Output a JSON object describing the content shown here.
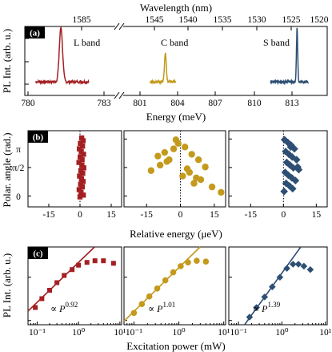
{
  "chart_data": [
    {
      "panel": "(a)",
      "type": "line",
      "xlabel": "Energy (meV)",
      "ylabel": "PL Int. (arb. u.)",
      "top_axis_label": "Wavelength (nm)",
      "top_ticks": [
        "1585",
        "1545",
        "1540",
        "1535",
        "1530",
        "1525",
        "1520"
      ],
      "bottom_ticks": [
        "780",
        "783",
        "801",
        "804",
        "807",
        "810",
        "813"
      ],
      "axis_break": true,
      "series": [
        {
          "name": "L band",
          "color": "#a31f22",
          "peak_energy": 781.3,
          "x_range": [
            780.3,
            782.4
          ]
        },
        {
          "name": "C band",
          "color": "#c39a1c",
          "peak_energy": 803.0,
          "x_range": [
            801.8,
            803.8
          ]
        },
        {
          "name": "S band",
          "color": "#2e4f74",
          "peak_energy": 813.4,
          "x_range": [
            811.3,
            814.3
          ]
        }
      ]
    },
    {
      "panel": "(b)",
      "type": "scatter",
      "xlabel": "Relative energy (μeV)",
      "ylabel": "Polar. angle (rad.)",
      "xticks": [
        "-15",
        "0",
        "15"
      ],
      "yticks": [
        "0",
        "π/2",
        "π"
      ],
      "xlim": [
        -25,
        20
      ],
      "ylim": [
        -0.6,
        3.6
      ],
      "series": [
        {
          "name": "L band",
          "color": "#a31f22",
          "marker": "square",
          "x": [
            0.8,
            1.5,
            0.2,
            1.2,
            -0.3,
            0.6,
            1.7,
            0.1,
            1.0,
            -0.5,
            0.9,
            1.8,
            0.4,
            1.3,
            -0.2,
            0.7,
            1.5,
            0.3,
            1.1,
            -0.4,
            0.5,
            1.6,
            0.0
          ],
          "y": [
            3.2,
            3.05,
            2.9,
            2.75,
            2.6,
            2.45,
            2.3,
            2.15,
            2.0,
            1.85,
            1.7,
            1.55,
            1.4,
            1.25,
            1.1,
            0.95,
            0.8,
            0.65,
            0.5,
            0.35,
            0.2,
            0.05,
            -0.05
          ]
        },
        {
          "name": "C band",
          "color": "#c39a1c",
          "marker": "circle",
          "x": [
            -13,
            -9,
            -5,
            -7,
            -3,
            -1,
            -2,
            -10,
            2,
            5,
            8,
            11,
            4,
            7,
            14,
            18,
            6,
            -6,
            1,
            3,
            9
          ],
          "y": [
            1.4,
            1.7,
            2.0,
            2.4,
            2.6,
            2.9,
            3.1,
            2.2,
            2.7,
            2.3,
            2.0,
            1.6,
            1.3,
            1.0,
            0.5,
            0.2,
            0.7,
            1.9,
            1.1,
            1.5,
            0.9
          ]
        },
        {
          "name": "S band",
          "color": "#2e4f74",
          "marker": "diamond",
          "x": [
            0.5,
            2.0,
            3.5,
            5.0,
            1.0,
            2.5,
            4.0,
            6.0,
            1.5,
            3.0,
            4.5,
            7.0,
            0.8,
            2.2,
            3.8,
            5.5,
            1.2,
            2.8,
            4.2,
            0.3,
            6.5,
            3.3
          ],
          "y": [
            3.1,
            2.95,
            2.8,
            2.6,
            2.45,
            2.3,
            2.15,
            2.0,
            1.85,
            1.7,
            1.55,
            1.45,
            1.3,
            1.15,
            1.0,
            0.85,
            0.7,
            0.55,
            0.4,
            0.25,
            1.6,
            2.7
          ]
        }
      ]
    },
    {
      "panel": "(c)",
      "type": "scatter",
      "xlabel": "Excitation power (mW)",
      "ylabel": "PL Int. (arb. u.)",
      "x_scale": "log",
      "xticks": [
        "10⁻¹",
        "10⁰",
        "10¹"
      ],
      "xlim": [
        0.06,
        11
      ],
      "series": [
        {
          "name": "L band",
          "color": "#a31f22",
          "marker": "square",
          "x": [
            0.09,
            0.13,
            0.2,
            0.3,
            0.45,
            0.7,
            1.0,
            1.6,
            2.5,
            4.0,
            7.0
          ],
          "y": [
            0.02,
            0.032,
            0.05,
            0.075,
            0.11,
            0.15,
            0.19,
            0.22,
            0.24,
            0.24,
            0.21
          ],
          "fit_exponent": "0.92"
        },
        {
          "name": "C band",
          "color": "#c39a1c",
          "marker": "circle",
          "x": [
            0.1,
            0.15,
            0.22,
            0.33,
            0.5,
            0.75,
            1.1,
            1.6,
            2.5,
            4.0
          ],
          "y": [
            0.015,
            0.024,
            0.036,
            0.055,
            0.085,
            0.13,
            0.18,
            0.22,
            0.24,
            0.23
          ],
          "fit_exponent": "1.01"
        },
        {
          "name": "S band",
          "color": "#2e4f74",
          "marker": "diamond",
          "x": [
            0.18,
            0.26,
            0.4,
            0.6,
            0.9,
            1.3,
            1.8,
            2.4,
            3.2,
            4.5
          ],
          "y": [
            0.012,
            0.02,
            0.035,
            0.06,
            0.1,
            0.16,
            0.2,
            0.2,
            0.18,
            0.15
          ],
          "fit_exponent": "1.39"
        }
      ]
    }
  ],
  "colors": {
    "l_band": "#a31f22",
    "c_band": "#c39a1c",
    "s_band": "#2e4f74"
  }
}
